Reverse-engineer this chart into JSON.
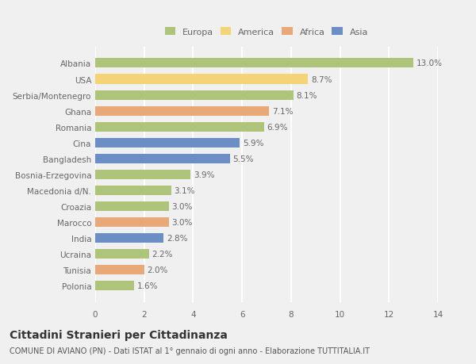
{
  "categories": [
    "Albania",
    "USA",
    "Serbia/Montenegro",
    "Ghana",
    "Romania",
    "Cina",
    "Bangladesh",
    "Bosnia-Erzegovina",
    "Macedonia d/N.",
    "Croazia",
    "Marocco",
    "India",
    "Ucraina",
    "Tunisia",
    "Polonia"
  ],
  "values": [
    13.0,
    8.7,
    8.1,
    7.1,
    6.9,
    5.9,
    5.5,
    3.9,
    3.1,
    3.0,
    3.0,
    2.8,
    2.2,
    2.0,
    1.6
  ],
  "continents": [
    "Europa",
    "America",
    "Europa",
    "Africa",
    "Europa",
    "Asia",
    "Asia",
    "Europa",
    "Europa",
    "Europa",
    "Africa",
    "Asia",
    "Europa",
    "Africa",
    "Europa"
  ],
  "continent_colors": {
    "Europa": "#adc47a",
    "America": "#f5d478",
    "Africa": "#e8a878",
    "Asia": "#6b8fc4"
  },
  "legend_order": [
    "Europa",
    "America",
    "Africa",
    "Asia"
  ],
  "title": "Cittadini Stranieri per Cittadinanza",
  "subtitle": "COMUNE DI AVIANO (PN) - Dati ISTAT al 1° gennaio di ogni anno - Elaborazione TUTTITALIA.IT",
  "xlim": [
    0,
    14
  ],
  "xticks": [
    0,
    2,
    4,
    6,
    8,
    10,
    12,
    14
  ],
  "bar_height": 0.6,
  "background_color": "#f0f0f0",
  "grid_color": "#ffffff",
  "label_fontsize": 7.5,
  "value_fontsize": 7.5,
  "title_fontsize": 10,
  "subtitle_fontsize": 7,
  "legend_fontsize": 8
}
